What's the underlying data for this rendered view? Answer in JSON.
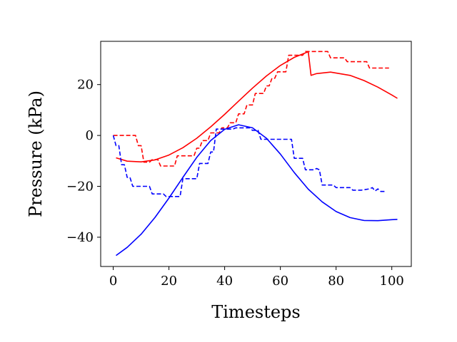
{
  "chart_data": {
    "type": "line",
    "title": "",
    "xlabel": "Timesteps",
    "ylabel": "Pressure (kPa)",
    "xlim": [
      -4.5,
      107
    ],
    "ylim": [
      -51.5,
      37
    ],
    "x_ticks": [
      0,
      20,
      40,
      60,
      80,
      100
    ],
    "y_ticks": [
      -40,
      -20,
      0,
      20
    ],
    "x_tick_labels": [
      "0",
      "20",
      "40",
      "60",
      "80",
      "100"
    ],
    "y_tick_labels": [
      "−40",
      "−20",
      "0",
      "20"
    ],
    "grid": false,
    "legend": "none",
    "series": [
      {
        "color": "#ff0000",
        "style": "solid",
        "points": [
          [
            1,
            -8.8
          ],
          [
            5,
            -10.1
          ],
          [
            10,
            -10.4
          ],
          [
            15,
            -9.6
          ],
          [
            20,
            -7.7
          ],
          [
            25,
            -4.8
          ],
          [
            30,
            -1.1
          ],
          [
            35,
            3.4
          ],
          [
            40,
            8.3
          ],
          [
            45,
            13.5
          ],
          [
            50,
            18.6
          ],
          [
            55,
            23.4
          ],
          [
            60,
            27.5
          ],
          [
            65,
            30.7
          ],
          [
            70,
            32.9
          ],
          [
            71,
            23.6
          ],
          [
            73,
            24.3
          ],
          [
            78,
            24.9
          ],
          [
            85,
            23.6
          ],
          [
            90,
            21.6
          ],
          [
            95,
            19.0
          ],
          [
            100,
            15.9
          ],
          [
            102,
            14.6
          ]
        ]
      },
      {
        "color": "#ff0000",
        "style": "dashed",
        "points": [
          [
            0,
            0
          ],
          [
            8,
            0
          ],
          [
            9,
            -4
          ],
          [
            10,
            -4
          ],
          [
            11,
            -10.5
          ],
          [
            13,
            -10.5
          ],
          [
            14,
            -9.5
          ],
          [
            16,
            -9.5
          ],
          [
            17,
            -12
          ],
          [
            22,
            -12
          ],
          [
            23,
            -8
          ],
          [
            29,
            -8
          ],
          [
            30,
            -5
          ],
          [
            31,
            -5
          ],
          [
            32,
            -2
          ],
          [
            34,
            -2
          ],
          [
            35,
            1
          ],
          [
            38,
            1
          ],
          [
            39,
            3
          ],
          [
            41,
            3
          ],
          [
            42,
            5
          ],
          [
            44,
            5
          ],
          [
            45,
            8.5
          ],
          [
            47,
            8.5
          ],
          [
            48,
            12
          ],
          [
            50,
            12
          ],
          [
            51,
            16.5
          ],
          [
            54,
            16.5
          ],
          [
            55,
            19.5
          ],
          [
            56,
            19.5
          ],
          [
            57,
            22.5
          ],
          [
            58,
            22.5
          ],
          [
            59,
            25
          ],
          [
            62,
            25
          ],
          [
            63,
            31.5
          ],
          [
            65,
            31.5
          ],
          [
            66,
            31.5
          ],
          [
            68,
            31.5
          ],
          [
            69,
            33
          ],
          [
            77,
            33
          ],
          [
            78,
            30.5
          ],
          [
            83,
            30.5
          ],
          [
            84,
            29
          ],
          [
            91,
            29
          ],
          [
            92,
            26.5
          ],
          [
            99,
            26.5
          ]
        ]
      },
      {
        "color": "#0000ff",
        "style": "solid",
        "points": [
          [
            1,
            -47.2
          ],
          [
            5,
            -44.0
          ],
          [
            10,
            -38.8
          ],
          [
            15,
            -32.2
          ],
          [
            20,
            -24.6
          ],
          [
            25,
            -16.5
          ],
          [
            30,
            -8.6
          ],
          [
            35,
            -2.0
          ],
          [
            40,
            2.4
          ],
          [
            45,
            4.2
          ],
          [
            50,
            3.0
          ],
          [
            55,
            -1.1
          ],
          [
            60,
            -7.3
          ],
          [
            65,
            -14.6
          ],
          [
            70,
            -21.1
          ],
          [
            75,
            -26.1
          ],
          [
            80,
            -29.9
          ],
          [
            85,
            -32.3
          ],
          [
            90,
            -33.4
          ],
          [
            95,
            -33.5
          ],
          [
            100,
            -33.1
          ],
          [
            102,
            -33.0
          ]
        ]
      },
      {
        "color": "#0000ff",
        "style": "dashed",
        "points": [
          [
            0,
            0
          ],
          [
            1,
            -4
          ],
          [
            2,
            -4
          ],
          [
            3,
            -11.5
          ],
          [
            4,
            -11.5
          ],
          [
            5,
            -16.5
          ],
          [
            6,
            -16.5
          ],
          [
            7,
            -20
          ],
          [
            13,
            -20
          ],
          [
            14,
            -23
          ],
          [
            18,
            -23
          ],
          [
            19,
            -24
          ],
          [
            24,
            -24
          ],
          [
            25,
            -17
          ],
          [
            30,
            -17
          ],
          [
            31,
            -11
          ],
          [
            34,
            -11
          ],
          [
            35,
            -6.5
          ],
          [
            36,
            -6.5
          ],
          [
            37,
            2.5
          ],
          [
            43,
            2.5
          ],
          [
            44,
            3
          ],
          [
            49,
            3
          ],
          [
            50,
            2
          ],
          [
            52,
            2
          ],
          [
            53,
            -1.5
          ],
          [
            64,
            -1.5
          ],
          [
            65,
            -9
          ],
          [
            68,
            -9
          ],
          [
            69,
            -13.5
          ],
          [
            72,
            -13.5
          ],
          [
            73,
            -13
          ],
          [
            74,
            -13.5
          ],
          [
            75,
            -19.5
          ],
          [
            79,
            -19.5
          ],
          [
            80,
            -20.5
          ],
          [
            85,
            -20.5
          ],
          [
            86,
            -21.5
          ],
          [
            88,
            -21.5
          ],
          [
            89,
            -21.5
          ],
          [
            92,
            -21
          ],
          [
            93,
            -20.5
          ],
          [
            94,
            -21.8
          ],
          [
            95,
            -21
          ],
          [
            96,
            -22
          ],
          [
            98,
            -22
          ]
        ]
      }
    ]
  }
}
